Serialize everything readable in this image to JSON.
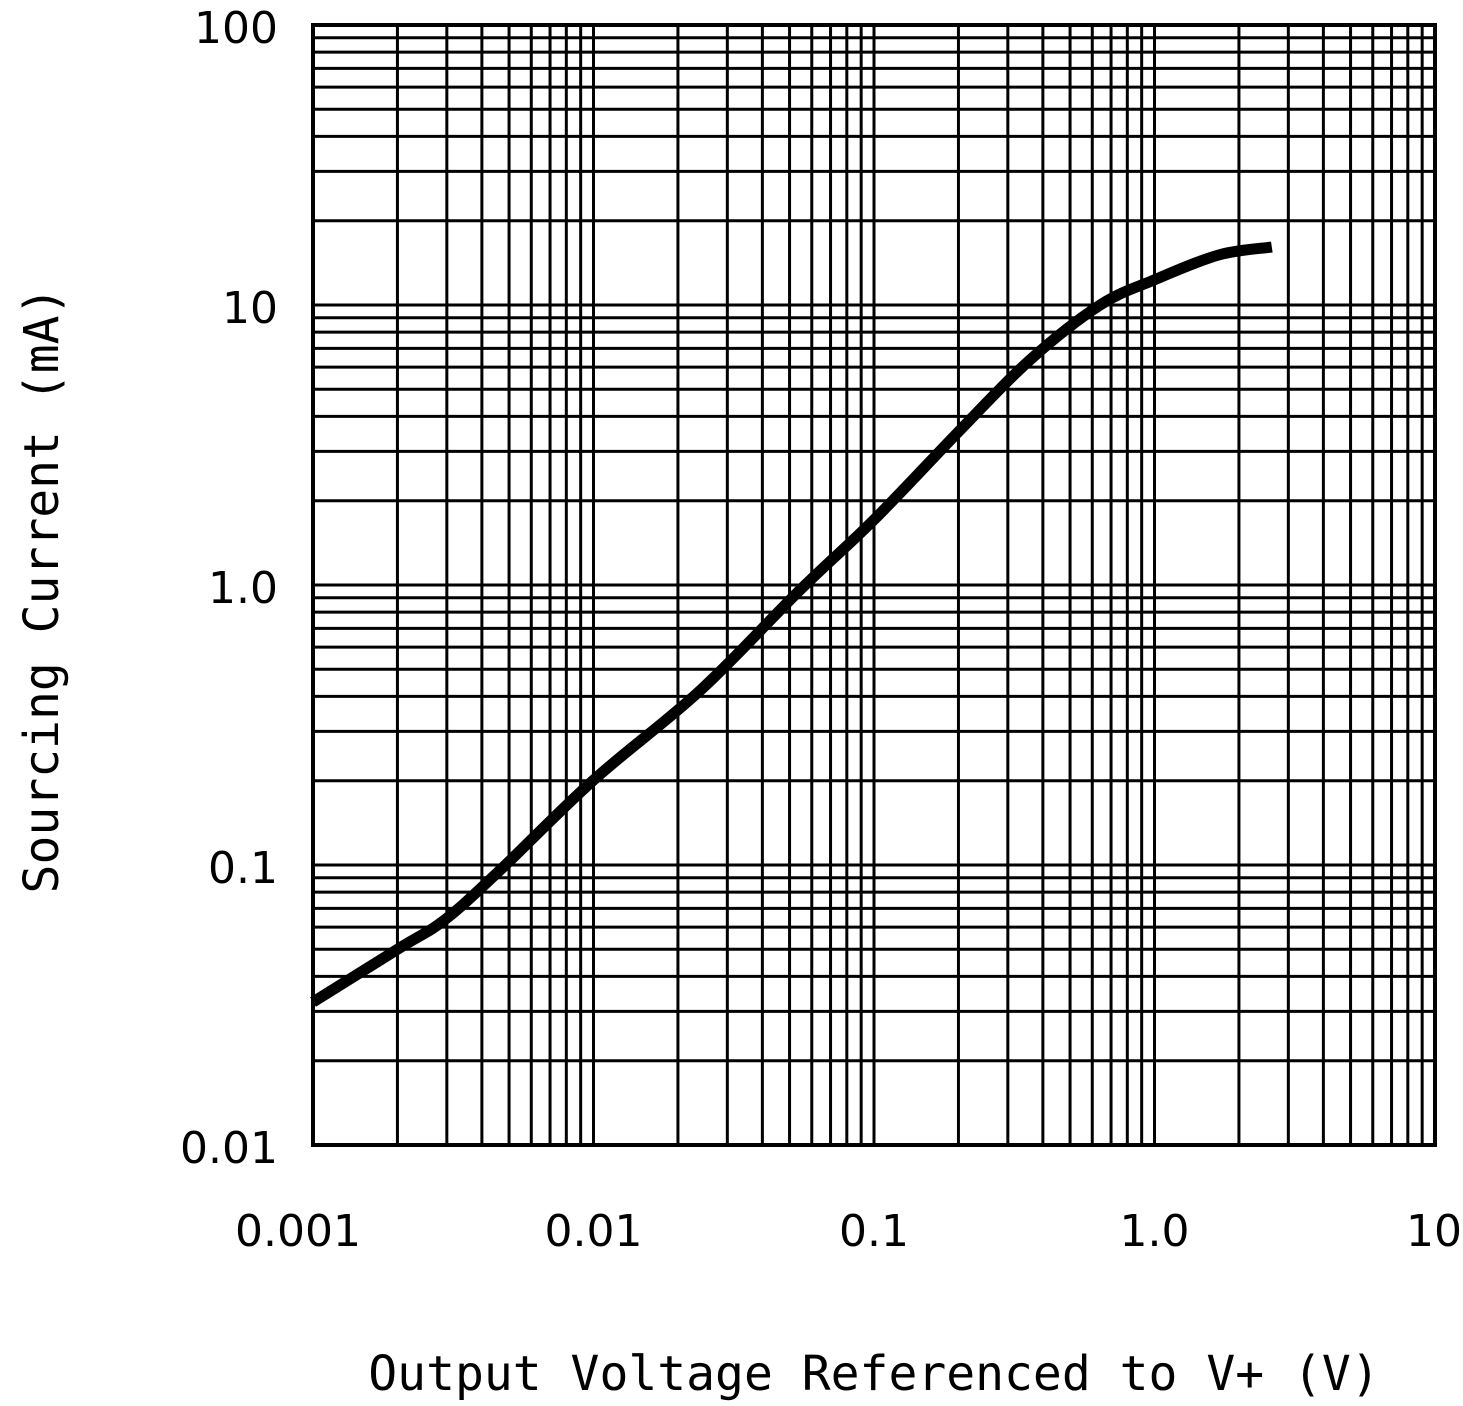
{
  "chart_data": {
    "type": "line",
    "title": "",
    "xlabel": "Output Voltage Referenced to V+ (V)",
    "ylabel": "Sourcing Current (mA)",
    "xscale": "log",
    "yscale": "log",
    "xlim": [
      0.001,
      10
    ],
    "ylim": [
      0.01,
      100
    ],
    "grid": true,
    "x_tick_labels": [
      "0.001",
      "0.01",
      "0.1",
      "1.0",
      "10"
    ],
    "x_tick_values": [
      0.001,
      0.01,
      0.1,
      1,
      10
    ],
    "y_tick_labels": [
      "0.01",
      "0.1",
      "1.0",
      "10",
      "100"
    ],
    "y_tick_values": [
      0.01,
      0.1,
      1,
      10,
      100
    ],
    "series": [
      {
        "color": "#000000",
        "x": [
          0.001,
          0.00204,
          0.00295,
          0.00465,
          0.01,
          0.024,
          0.0545,
          0.1,
          0.203,
          0.36,
          0.64,
          1.0,
          1.7,
          2.62
        ],
        "y": [
          0.0324,
          0.0506,
          0.0637,
          0.096,
          0.201,
          0.42,
          0.96,
          1.71,
          3.58,
          6.37,
          10.0,
          12.3,
          15.1,
          16.1
        ]
      }
    ]
  }
}
